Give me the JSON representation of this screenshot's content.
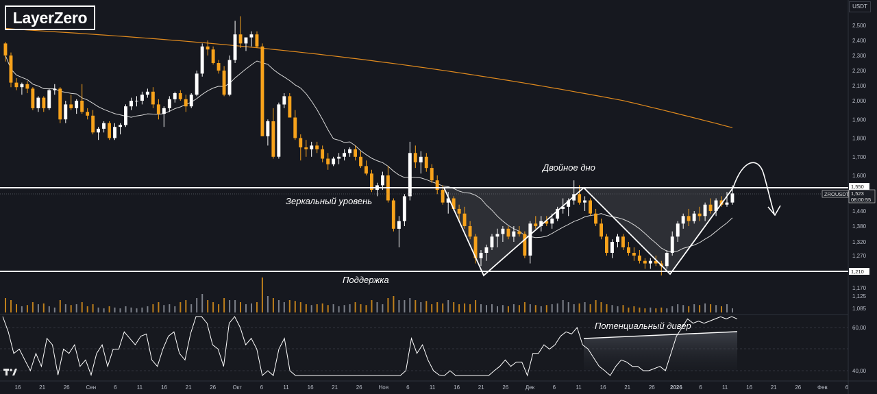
{
  "logo": {
    "text": "LayerZero"
  },
  "unit": "USDT",
  "colors": {
    "background": "#16181f",
    "bull": "#ffffff",
    "bear": "#f7a21b",
    "ma_long": "#e08a1e",
    "ma_short": "#d8d8d8",
    "levels": "#ffffff",
    "rsi": "#ffffff"
  },
  "annotations": {
    "double_bottom": "Двойное дно",
    "mirror_level": "Зеркальный уровень",
    "support": "Поддержка",
    "divergence": "Потенциальный дивер"
  },
  "levels": {
    "resistance": {
      "value": 1550,
      "label": "1,550"
    },
    "support": {
      "value": 1210,
      "label": "1,210"
    }
  },
  "price_labels": {
    "symbol": "ZROUSDT",
    "last_price": "1,523",
    "countdown": "08:00:55"
  },
  "chart_data": {
    "type": "candlestick",
    "symbol": "ZROUSDT",
    "y_ticks": [
      "2,500",
      "2,400",
      "2,300",
      "2,200",
      "2,100",
      "2,000",
      "1,900",
      "1,800",
      "1,700",
      "1,600",
      "1,440",
      "1,380",
      "1,320",
      "1,270",
      "1,170",
      "1,125",
      "1,085"
    ],
    "y_tick_values": [
      2500,
      2400,
      2300,
      2200,
      2100,
      2000,
      1900,
      1800,
      1700,
      1600,
      1440,
      1380,
      1320,
      1270,
      1170,
      1125,
      1085
    ],
    "x_ticks": [
      "16",
      "21",
      "26",
      "Сен",
      "6",
      "11",
      "16",
      "21",
      "26",
      "Окт",
      "6",
      "11",
      "16",
      "21",
      "26",
      "Ноя",
      "6",
      "11",
      "16",
      "21",
      "26",
      "Дек",
      "6",
      "11",
      "16",
      "21",
      "26",
      "2026",
      "6",
      "11",
      "16",
      "21",
      "26",
      "Фев",
      "6"
    ],
    "last_close": 1523,
    "rsi_ticks": [
      "60,00",
      "40,00"
    ],
    "rsi_tick_values": [
      60,
      40
    ],
    "candles_ohlc": [
      [
        2380,
        2390,
        2260,
        2300
      ],
      [
        2300,
        2320,
        2090,
        2120
      ],
      [
        2120,
        2150,
        2070,
        2090
      ],
      [
        2090,
        2120,
        2040,
        2110
      ],
      [
        2110,
        2130,
        2050,
        2080
      ],
      [
        2080,
        2090,
        1950,
        1960
      ],
      [
        1960,
        2030,
        1940,
        2020
      ],
      [
        2020,
        2030,
        1940,
        1960
      ],
      [
        1960,
        2080,
        1950,
        2070
      ],
      [
        2070,
        2110,
        2040,
        2080
      ],
      [
        2080,
        2090,
        1880,
        1900
      ],
      [
        1900,
        2000,
        1880,
        1980
      ],
      [
        1980,
        2040,
        1950,
        1960
      ],
      [
        1960,
        2010,
        1930,
        2000
      ],
      [
        2000,
        2110,
        1930,
        1940
      ],
      [
        1940,
        1960,
        1900,
        1920
      ],
      [
        1920,
        1950,
        1820,
        1830
      ],
      [
        1830,
        1860,
        1790,
        1850
      ],
      [
        1850,
        1890,
        1830,
        1880
      ],
      [
        1880,
        1890,
        1790,
        1800
      ],
      [
        1800,
        1880,
        1790,
        1860
      ],
      [
        1860,
        1880,
        1820,
        1870
      ],
      [
        1870,
        1980,
        1860,
        1970
      ],
      [
        1970,
        2020,
        1950,
        2000
      ],
      [
        2000,
        2030,
        1970,
        2000
      ],
      [
        2000,
        2060,
        1980,
        2040
      ],
      [
        2040,
        2080,
        2020,
        2060
      ],
      [
        2060,
        2090,
        1960,
        1980
      ],
      [
        1980,
        2010,
        1900,
        1930
      ],
      [
        1930,
        1970,
        1860,
        1960
      ],
      [
        1960,
        2030,
        1940,
        2010
      ],
      [
        2010,
        2060,
        1990,
        2050
      ],
      [
        2050,
        2070,
        2000,
        2010
      ],
      [
        2010,
        2040,
        1940,
        1970
      ],
      [
        1970,
        2050,
        1960,
        2040
      ],
      [
        2040,
        2200,
        2030,
        2180
      ],
      [
        2180,
        2380,
        2160,
        2360
      ],
      [
        2360,
        2400,
        2300,
        2340
      ],
      [
        2340,
        2360,
        2240,
        2250
      ],
      [
        2250,
        2270,
        2180,
        2200
      ],
      [
        2200,
        2230,
        2030,
        2040
      ],
      [
        2040,
        2300,
        2030,
        2270
      ],
      [
        2270,
        2530,
        2250,
        2440
      ],
      [
        2440,
        2560,
        2350,
        2380
      ],
      [
        2380,
        2420,
        2330,
        2420
      ],
      [
        2420,
        2460,
        2360,
        2440
      ],
      [
        2440,
        2460,
        2350,
        2360
      ],
      [
        2360,
        2380,
        1810,
        1810
      ],
      [
        1810,
        1900,
        1760,
        1890
      ],
      [
        1890,
        1960,
        1690,
        1700
      ],
      [
        1700,
        1990,
        1690,
        1980
      ],
      [
        1980,
        2050,
        1960,
        2030
      ],
      [
        2030,
        2050,
        1910,
        1910
      ],
      [
        1910,
        1950,
        1790,
        1800
      ],
      [
        1800,
        1820,
        1680,
        1750
      ],
      [
        1750,
        1790,
        1700,
        1740
      ],
      [
        1740,
        1780,
        1700,
        1760
      ],
      [
        1760,
        1780,
        1720,
        1740
      ],
      [
        1740,
        1760,
        1670,
        1690
      ],
      [
        1690,
        1720,
        1630,
        1660
      ],
      [
        1660,
        1700,
        1650,
        1690
      ],
      [
        1690,
        1720,
        1660,
        1700
      ],
      [
        1700,
        1740,
        1680,
        1720
      ],
      [
        1720,
        1750,
        1700,
        1740
      ],
      [
        1740,
        1760,
        1680,
        1700
      ],
      [
        1700,
        1730,
        1640,
        1650
      ],
      [
        1650,
        1680,
        1600,
        1610
      ],
      [
        1610,
        1630,
        1530,
        1540
      ],
      [
        1540,
        1570,
        1510,
        1560
      ],
      [
        1560,
        1620,
        1540,
        1600
      ],
      [
        1600,
        1650,
        1480,
        1490
      ],
      [
        1490,
        1500,
        1360,
        1370
      ],
      [
        1370,
        1420,
        1300,
        1400
      ],
      [
        1400,
        1520,
        1380,
        1510
      ],
      [
        1510,
        1780,
        1490,
        1720
      ],
      [
        1720,
        1760,
        1640,
        1670
      ],
      [
        1670,
        1730,
        1610,
        1700
      ],
      [
        1700,
        1720,
        1620,
        1640
      ],
      [
        1640,
        1660,
        1570,
        1580
      ],
      [
        1580,
        1600,
        1520,
        1540
      ],
      [
        1540,
        1560,
        1470,
        1480
      ],
      [
        1480,
        1530,
        1430,
        1500
      ],
      [
        1500,
        1510,
        1440,
        1450
      ],
      [
        1450,
        1470,
        1400,
        1430
      ],
      [
        1430,
        1460,
        1370,
        1380
      ],
      [
        1380,
        1400,
        1330,
        1340
      ],
      [
        1340,
        1350,
        1240,
        1260
      ],
      [
        1260,
        1290,
        1230,
        1280
      ],
      [
        1280,
        1310,
        1250,
        1300
      ],
      [
        1300,
        1350,
        1290,
        1340
      ],
      [
        1340,
        1370,
        1300,
        1350
      ],
      [
        1350,
        1380,
        1320,
        1370
      ],
      [
        1370,
        1380,
        1330,
        1340
      ],
      [
        1340,
        1380,
        1320,
        1360
      ],
      [
        1360,
        1380,
        1340,
        1350
      ],
      [
        1350,
        1360,
        1260,
        1270
      ],
      [
        1270,
        1400,
        1240,
        1390
      ],
      [
        1390,
        1420,
        1370,
        1380
      ],
      [
        1380,
        1420,
        1360,
        1400
      ],
      [
        1400,
        1420,
        1380,
        1390
      ],
      [
        1390,
        1430,
        1370,
        1410
      ],
      [
        1410,
        1460,
        1400,
        1450
      ],
      [
        1450,
        1500,
        1430,
        1460
      ],
      [
        1460,
        1500,
        1420,
        1490
      ],
      [
        1490,
        1580,
        1470,
        1520
      ],
      [
        1520,
        1560,
        1470,
        1480
      ],
      [
        1480,
        1510,
        1440,
        1490
      ],
      [
        1490,
        1500,
        1420,
        1430
      ],
      [
        1430,
        1450,
        1380,
        1390
      ],
      [
        1390,
        1410,
        1330,
        1340
      ],
      [
        1340,
        1350,
        1270,
        1280
      ],
      [
        1280,
        1330,
        1260,
        1320
      ],
      [
        1320,
        1350,
        1300,
        1340
      ],
      [
        1340,
        1350,
        1290,
        1300
      ],
      [
        1300,
        1320,
        1270,
        1280
      ],
      [
        1280,
        1300,
        1250,
        1270
      ],
      [
        1270,
        1290,
        1240,
        1250
      ],
      [
        1250,
        1260,
        1220,
        1240
      ],
      [
        1240,
        1260,
        1220,
        1250
      ],
      [
        1250,
        1270,
        1230,
        1240
      ],
      [
        1240,
        1250,
        1200,
        1230
      ],
      [
        1230,
        1290,
        1220,
        1280
      ],
      [
        1280,
        1360,
        1270,
        1340
      ],
      [
        1340,
        1400,
        1320,
        1390
      ],
      [
        1390,
        1430,
        1370,
        1420
      ],
      [
        1420,
        1450,
        1380,
        1400
      ],
      [
        1400,
        1440,
        1390,
        1430
      ],
      [
        1430,
        1460,
        1400,
        1420
      ],
      [
        1420,
        1480,
        1400,
        1470
      ],
      [
        1470,
        1500,
        1430,
        1440
      ],
      [
        1440,
        1500,
        1420,
        1490
      ],
      [
        1490,
        1510,
        1460,
        1470
      ],
      [
        1470,
        1530,
        1460,
        1480
      ],
      [
        1480,
        1560,
        1470,
        1523
      ]
    ],
    "volume": [
      0.35,
      0.3,
      0.2,
      0.15,
      0.18,
      0.25,
      0.2,
      0.22,
      0.15,
      0.12,
      0.3,
      0.2,
      0.18,
      0.2,
      0.25,
      0.15,
      0.2,
      0.12,
      0.1,
      0.15,
      0.12,
      0.1,
      0.15,
      0.12,
      0.1,
      0.12,
      0.15,
      0.2,
      0.25,
      0.18,
      0.2,
      0.15,
      0.25,
      0.3,
      0.2,
      0.35,
      0.45,
      0.3,
      0.25,
      0.2,
      0.35,
      0.3,
      0.3,
      0.25,
      0.2,
      0.22,
      0.25,
      0.85,
      0.4,
      0.35,
      0.3,
      0.25,
      0.3,
      0.28,
      0.25,
      0.2,
      0.18,
      0.2,
      0.22,
      0.18,
      0.2,
      0.15,
      0.18,
      0.2,
      0.25,
      0.2,
      0.18,
      0.3,
      0.25,
      0.2,
      0.35,
      0.4,
      0.3,
      0.3,
      0.35,
      0.3,
      0.25,
      0.28,
      0.2,
      0.25,
      0.22,
      0.3,
      0.25,
      0.2,
      0.22,
      0.2,
      0.3,
      0.2,
      0.18,
      0.2,
      0.15,
      0.18,
      0.15,
      0.2,
      0.18,
      0.25,
      0.2,
      0.18,
      0.15,
      0.18,
      0.2,
      0.22,
      0.3,
      0.25,
      0.2,
      0.22,
      0.25,
      0.2,
      0.3,
      0.25,
      0.2,
      0.18,
      0.15,
      0.18,
      0.12,
      0.15,
      0.12,
      0.1,
      0.12,
      0.1,
      0.12,
      0.1,
      0.15,
      0.2,
      0.18,
      0.15,
      0.2,
      0.18,
      0.22,
      0.2,
      0.18,
      0.15,
      0.2,
      0.1
    ],
    "rsi": [
      66,
      58,
      48,
      50,
      45,
      40,
      48,
      42,
      55,
      52,
      38,
      50,
      48,
      52,
      42,
      45,
      38,
      48,
      52,
      42,
      50,
      50,
      58,
      55,
      52,
      56,
      57,
      45,
      42,
      50,
      56,
      58,
      48,
      45,
      57,
      66,
      70,
      62,
      52,
      50,
      42,
      62,
      70,
      60,
      52,
      55,
      50,
      30,
      40,
      35,
      50,
      55,
      40,
      35,
      32,
      34,
      35,
      34,
      30,
      32,
      34,
      34,
      36,
      37,
      34,
      32,
      30,
      28,
      32,
      36,
      30,
      27,
      34,
      40,
      55,
      48,
      52,
      45,
      40,
      38,
      35,
      40,
      36,
      35,
      32,
      30,
      25,
      33,
      35,
      40,
      42,
      45,
      42,
      44,
      44,
      33,
      48,
      48,
      52,
      50,
      52,
      56,
      58,
      57,
      60,
      52,
      50,
      46,
      42,
      40,
      36,
      42,
      45,
      44,
      42,
      42,
      40,
      40,
      41,
      42,
      40,
      48,
      56,
      60,
      64,
      62,
      63,
      62,
      63,
      64,
      65,
      64,
      66,
      64
    ]
  }
}
